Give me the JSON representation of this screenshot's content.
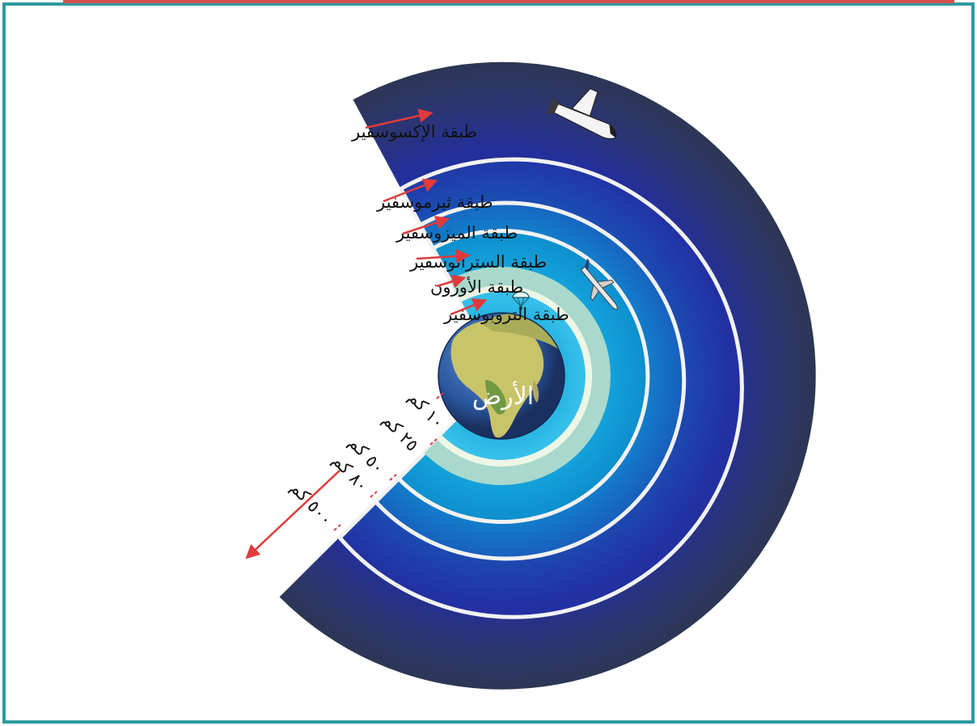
{
  "colors": {
    "frame": "#2e9aa3",
    "top_bar": "#d5504b",
    "exosphere": "#2c3654",
    "thermosphere": "#1f2fa0",
    "mesosphere": "#1466c8",
    "stratosphere": "#0f9fd8",
    "ozone": "#a9d9cc",
    "troposphere": "#23b5e6",
    "separator": "#f2f2f2",
    "arrow": "#e03a3a"
  },
  "layers": [
    {
      "id": "exosphere",
      "label": "طبقة الإكسوسفير"
    },
    {
      "id": "thermosphere",
      "label": "طبقة ثيرموسفير"
    },
    {
      "id": "mesosphere",
      "label": "طبقة الميزوسفير"
    },
    {
      "id": "stratosphere",
      "label": "طبقة الستراتوسفير"
    },
    {
      "id": "ozone",
      "label": "طبقة الأوزون"
    },
    {
      "id": "troposphere",
      "label": "طبقة التروبوسفير"
    }
  ],
  "earth": {
    "label": "الأرض"
  },
  "altitudes": [
    "١٠ كم",
    "٢٥ كم",
    "٥٠ كم",
    "٨٠ كم",
    "٥٠٠ كم"
  ],
  "icons": [
    "space-shuttle-icon",
    "airplane-icon",
    "parachute-icon"
  ]
}
